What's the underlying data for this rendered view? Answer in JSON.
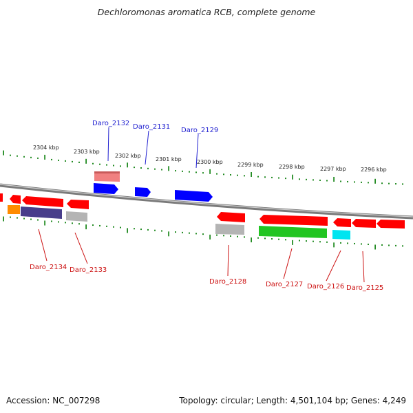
{
  "title": "Dechloromonas aromatica RCB, complete genome",
  "footer": {
    "accession": "Accession: NC_007298",
    "summary": "Topology: circular; Length: 4,501,104 bp; Genes: 4,249"
  },
  "colors": {
    "upper_label": "#1f1fd0",
    "lower_label": "#cc1111",
    "tick": "#228b22",
    "backbone": "#808080"
  },
  "ruler_labels": [
    "2304 kbp",
    "2303 kbp",
    "2302 kbp",
    "2301 kbp",
    "2300 kbp",
    "2299 kbp",
    "2298 kbp",
    "2297 kbp",
    "2296 kbp"
  ],
  "upper_gene_labels": [
    "Daro_2132",
    "Daro_2131",
    "Daro_2129"
  ],
  "lower_gene_labels": [
    "Daro_2134",
    "Daro_2133",
    "Daro_2128",
    "Daro_2127",
    "Daro_2126",
    "Daro_2125"
  ],
  "feature_colors": {
    "red": "#ff0000",
    "pink": "#f08080",
    "blue": "#0000ff",
    "orange": "#ff8c00",
    "purple": "#483d8b",
    "gray": "#b4b4b4",
    "green": "#22c522",
    "cyan": "#00e5f0"
  }
}
